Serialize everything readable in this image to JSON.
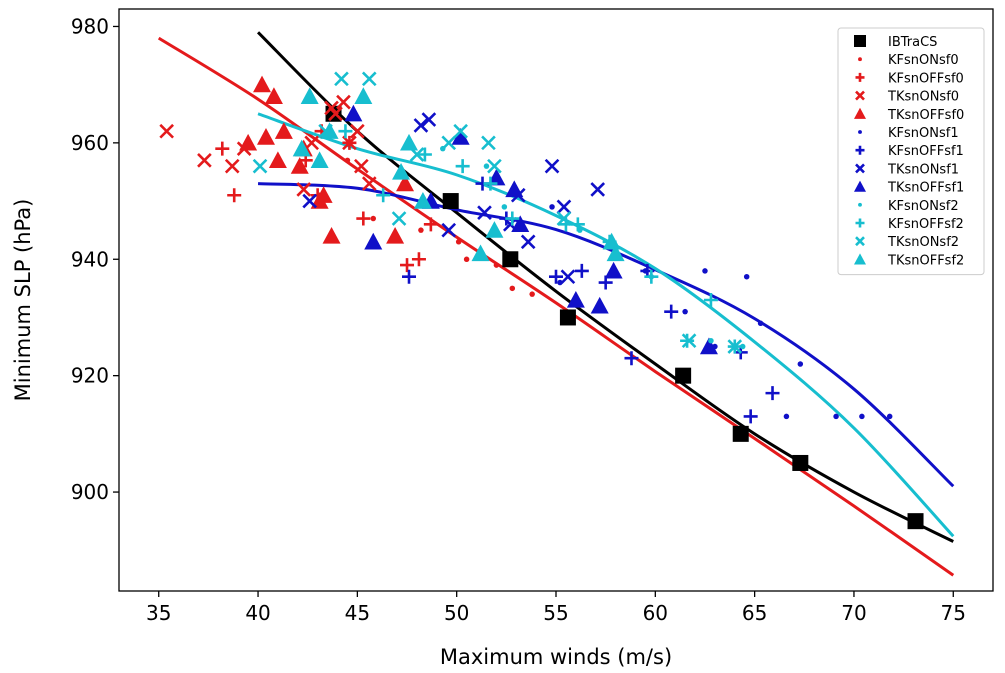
{
  "chart_data": {
    "type": "scatter",
    "title": "",
    "xlabel": "Maximum winds (m/s)",
    "ylabel": "Minimum SLP (hPa)",
    "xlim": [
      33,
      77
    ],
    "ylim": [
      883,
      983
    ],
    "xticks": [
      35,
      40,
      45,
      50,
      55,
      60,
      65,
      70,
      75
    ],
    "yticks": [
      900,
      920,
      940,
      960,
      980
    ],
    "grid": false,
    "legend_position": "top-right",
    "colors": {
      "sf0": "#e41a1c",
      "sf1": "#1010c8",
      "sf2": "#17becf",
      "obs": "#000000"
    },
    "series": [
      {
        "name": "IBTraCS",
        "marker": "square",
        "color": "#000000",
        "points": [
          [
            43.8,
            965
          ],
          [
            49.7,
            950
          ],
          [
            52.7,
            940
          ],
          [
            55.6,
            930
          ],
          [
            61.4,
            920
          ],
          [
            64.3,
            910
          ],
          [
            67.3,
            905
          ],
          [
            73.1,
            895
          ]
        ]
      },
      {
        "name": "KFsnONsf0",
        "marker": "dot",
        "color": "#e41a1c",
        "points": [
          [
            45.8,
            947
          ],
          [
            48.2,
            945
          ],
          [
            50.1,
            943
          ],
          [
            50.5,
            940
          ],
          [
            52.0,
            939
          ],
          [
            52.8,
            935
          ],
          [
            53.8,
            934
          ],
          [
            47.3,
            953
          ],
          [
            44.5,
            957
          ]
        ]
      },
      {
        "name": "KFsnOFFsf0",
        "marker": "plus",
        "color": "#e41a1c",
        "points": [
          [
            38.2,
            959
          ],
          [
            38.8,
            951
          ],
          [
            42.4,
            957
          ],
          [
            43.2,
            962
          ],
          [
            45.3,
            947
          ],
          [
            47.5,
            939
          ],
          [
            48.1,
            940
          ],
          [
            48.7,
            946
          ],
          [
            43.0,
            951
          ],
          [
            44.6,
            960
          ]
        ]
      },
      {
        "name": "TKsnONsf0",
        "marker": "x",
        "color": "#e41a1c",
        "points": [
          [
            35.4,
            962
          ],
          [
            37.3,
            957
          ],
          [
            38.7,
            956
          ],
          [
            39.3,
            959
          ],
          [
            42.3,
            952
          ],
          [
            43.7,
            966
          ],
          [
            44.3,
            967
          ],
          [
            44.6,
            960
          ],
          [
            45.0,
            962
          ],
          [
            45.2,
            956
          ],
          [
            45.6,
            953
          ],
          [
            42.7,
            960
          ],
          [
            43.9,
            965
          ]
        ]
      },
      {
        "name": "TKsnOFFsf0",
        "marker": "triangle",
        "color": "#e41a1c",
        "points": [
          [
            39.5,
            960
          ],
          [
            40.2,
            970
          ],
          [
            40.4,
            961
          ],
          [
            40.8,
            968
          ],
          [
            41.0,
            957
          ],
          [
            41.3,
            962
          ],
          [
            42.1,
            956
          ],
          [
            42.3,
            959
          ],
          [
            43.1,
            950
          ],
          [
            43.3,
            951
          ],
          [
            43.7,
            944
          ],
          [
            46.9,
            944
          ],
          [
            47.4,
            953
          ]
        ]
      },
      {
        "name": "KFsnONsf1",
        "marker": "dot",
        "color": "#1010c8",
        "points": [
          [
            54.8,
            949
          ],
          [
            55.2,
            936
          ],
          [
            59.5,
            938
          ],
          [
            61.5,
            931
          ],
          [
            62.5,
            938
          ],
          [
            63.0,
            925
          ],
          [
            64.6,
            937
          ],
          [
            65.3,
            929
          ],
          [
            66.6,
            913
          ],
          [
            67.3,
            922
          ],
          [
            69.1,
            913
          ],
          [
            70.4,
            913
          ],
          [
            71.8,
            913
          ]
        ]
      },
      {
        "name": "KFsnOFFsf1",
        "marker": "plus",
        "color": "#1010c8",
        "points": [
          [
            47.6,
            937
          ],
          [
            51.3,
            953
          ],
          [
            52.5,
            947
          ],
          [
            55.0,
            937
          ],
          [
            56.3,
            938
          ],
          [
            57.5,
            936
          ],
          [
            58.8,
            923
          ],
          [
            59.6,
            938
          ],
          [
            60.8,
            931
          ],
          [
            64.3,
            924
          ],
          [
            64.8,
            913
          ],
          [
            65.9,
            917
          ]
        ]
      },
      {
        "name": "TKsnONsf1",
        "marker": "x",
        "color": "#1010c8",
        "points": [
          [
            42.6,
            950
          ],
          [
            48.2,
            963
          ],
          [
            48.6,
            964
          ],
          [
            49.6,
            945
          ],
          [
            51.4,
            948
          ],
          [
            52.7,
            946
          ],
          [
            53.1,
            951
          ],
          [
            53.6,
            943
          ],
          [
            54.8,
            956
          ],
          [
            55.4,
            949
          ],
          [
            55.6,
            937
          ],
          [
            57.1,
            952
          ]
        ]
      },
      {
        "name": "TKsnOFFsf1",
        "marker": "triangle",
        "color": "#1010c8",
        "points": [
          [
            44.8,
            965
          ],
          [
            45.8,
            943
          ],
          [
            48.7,
            950
          ],
          [
            50.2,
            961
          ],
          [
            52.0,
            954
          ],
          [
            52.9,
            952
          ],
          [
            53.2,
            946
          ],
          [
            56.0,
            933
          ],
          [
            57.2,
            932
          ],
          [
            57.9,
            938
          ],
          [
            62.7,
            925
          ]
        ]
      },
      {
        "name": "KFsnONsf2",
        "marker": "dot",
        "color": "#17becf",
        "points": [
          [
            49.3,
            959
          ],
          [
            51.5,
            956
          ],
          [
            52.4,
            949
          ],
          [
            56.2,
            945
          ],
          [
            59.8,
            937
          ],
          [
            62.8,
            926
          ],
          [
            64.4,
            925
          ]
        ]
      },
      {
        "name": "KFsnOFFsf2",
        "marker": "plus",
        "color": "#17becf",
        "points": [
          [
            44.4,
            962
          ],
          [
            46.3,
            951
          ],
          [
            48.4,
            958
          ],
          [
            50.3,
            956
          ],
          [
            51.7,
            953
          ],
          [
            52.8,
            947
          ],
          [
            55.5,
            946
          ],
          [
            56.1,
            946
          ],
          [
            57.7,
            943
          ],
          [
            59.8,
            937
          ],
          [
            61.6,
            926
          ],
          [
            62.8,
            933
          ],
          [
            64.0,
            925
          ]
        ]
      },
      {
        "name": "TKsnONsf2",
        "marker": "x",
        "color": "#17becf",
        "points": [
          [
            40.1,
            956
          ],
          [
            43.4,
            962
          ],
          [
            44.2,
            971
          ],
          [
            45.6,
            971
          ],
          [
            47.1,
            947
          ],
          [
            48.0,
            958
          ],
          [
            49.6,
            960
          ],
          [
            50.2,
            962
          ],
          [
            51.6,
            960
          ],
          [
            51.9,
            956
          ],
          [
            55.4,
            947
          ],
          [
            61.7,
            926
          ],
          [
            64.0,
            925
          ]
        ]
      },
      {
        "name": "TKsnOFFsf2",
        "marker": "triangle",
        "color": "#17becf",
        "points": [
          [
            42.2,
            959
          ],
          [
            42.6,
            968
          ],
          [
            43.1,
            957
          ],
          [
            43.6,
            962
          ],
          [
            45.3,
            968
          ],
          [
            47.2,
            955
          ],
          [
            47.6,
            960
          ],
          [
            48.3,
            950
          ],
          [
            51.2,
            941
          ],
          [
            51.9,
            945
          ],
          [
            57.8,
            943
          ],
          [
            58.0,
            941
          ]
        ]
      }
    ],
    "fit_lines": [
      {
        "color": "#e41a1c",
        "points": [
          [
            35,
            978
          ],
          [
            40,
            967.5
          ],
          [
            45,
            955.5
          ],
          [
            50,
            943.8
          ],
          [
            55,
            932.5
          ],
          [
            60,
            920.7
          ],
          [
            65,
            909.2
          ],
          [
            70,
            897.6
          ],
          [
            75,
            885.7
          ]
        ]
      },
      {
        "color": "#000000",
        "points": [
          [
            40,
            979
          ],
          [
            45,
            962
          ],
          [
            50,
            948
          ],
          [
            55,
            934.5
          ],
          [
            60,
            922
          ],
          [
            65,
            910
          ],
          [
            70,
            900
          ],
          [
            75,
            891.5
          ]
        ]
      },
      {
        "color": "#1010c8",
        "points": [
          [
            40,
            953
          ],
          [
            45,
            952.2
          ],
          [
            50,
            948.5
          ],
          [
            55,
            945.1
          ],
          [
            60,
            938.2
          ],
          [
            65,
            929.8
          ],
          [
            70,
            917.7
          ],
          [
            75,
            901
          ]
        ]
      },
      {
        "color": "#17becf",
        "points": [
          [
            40,
            965
          ],
          [
            45,
            959
          ],
          [
            50,
            954.5
          ],
          [
            55,
            947.5
          ],
          [
            60,
            938.4
          ],
          [
            65,
            925.8
          ],
          [
            70,
            911
          ],
          [
            75,
            892.4
          ]
        ]
      }
    ]
  }
}
